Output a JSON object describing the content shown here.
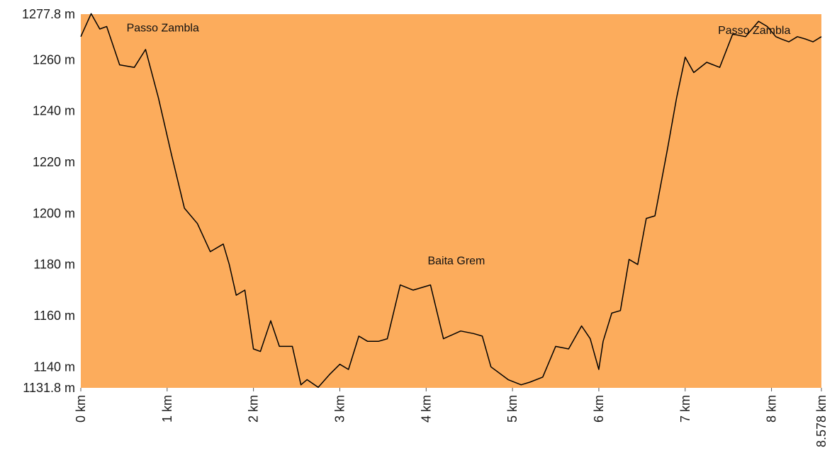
{
  "chart_data": {
    "type": "area",
    "title": "",
    "xlabel": "",
    "ylabel": "",
    "xlim": [
      0,
      8.578
    ],
    "ylim": [
      1131.8,
      1277.8
    ],
    "grid": false,
    "fill_color": "#FCAC5C",
    "line_color": "#000000",
    "y_ticks": [
      {
        "value": 1131.8,
        "label": "1131.8 m"
      },
      {
        "value": 1140,
        "label": "1140 m"
      },
      {
        "value": 1160,
        "label": "1160 m"
      },
      {
        "value": 1180,
        "label": "1180 m"
      },
      {
        "value": 1200,
        "label": "1200 m"
      },
      {
        "value": 1220,
        "label": "1220 m"
      },
      {
        "value": 1240,
        "label": "1240 m"
      },
      {
        "value": 1260,
        "label": "1260 m"
      },
      {
        "value": 1277.8,
        "label": "1277.8 m"
      }
    ],
    "x_ticks": [
      {
        "value": 0,
        "label": "0 km"
      },
      {
        "value": 1,
        "label": "1 km"
      },
      {
        "value": 2,
        "label": "2 km"
      },
      {
        "value": 3,
        "label": "3 km"
      },
      {
        "value": 4,
        "label": "4 km"
      },
      {
        "value": 5,
        "label": "5 km"
      },
      {
        "value": 6,
        "label": "6 km"
      },
      {
        "value": 7,
        "label": "7 km"
      },
      {
        "value": 8,
        "label": "8 km"
      },
      {
        "value": 8.578,
        "label": "8.578 km"
      }
    ],
    "annotations": [
      {
        "text": "Passo Zambla",
        "x": 0.95,
        "y": 1271
      },
      {
        "text": "Baita Grem",
        "x": 4.35,
        "y": 1180
      },
      {
        "text": "Passo Zambla",
        "x": 7.8,
        "y": 1270
      }
    ],
    "x": [
      0,
      0.12,
      0.22,
      0.3,
      0.45,
      0.62,
      0.75,
      0.9,
      1.05,
      1.2,
      1.35,
      1.5,
      1.65,
      1.72,
      1.8,
      1.9,
      2.0,
      2.08,
      2.2,
      2.3,
      2.45,
      2.55,
      2.62,
      2.75,
      2.88,
      3.0,
      3.1,
      3.22,
      3.32,
      3.45,
      3.55,
      3.7,
      3.85,
      4.05,
      4.2,
      4.4,
      4.55,
      4.65,
      4.75,
      4.95,
      5.1,
      5.2,
      5.35,
      5.5,
      5.65,
      5.8,
      5.9,
      6.0,
      6.05,
      6.15,
      6.25,
      6.35,
      6.45,
      6.55,
      6.65,
      6.8,
      6.9,
      7.0,
      7.1,
      7.25,
      7.4,
      7.55,
      7.7,
      7.85,
      7.95,
      8.05,
      8.12,
      8.2,
      8.3,
      8.4,
      8.48,
      8.578
    ],
    "y": [
      1269,
      1278,
      1272,
      1273,
      1258,
      1257,
      1264,
      1245,
      1223,
      1202,
      1196,
      1185,
      1188,
      1180,
      1168,
      1170,
      1147,
      1146,
      1158,
      1148,
      1148,
      1133,
      1135,
      1132,
      1137,
      1141,
      1139,
      1152,
      1150,
      1150,
      1151,
      1172,
      1170,
      1172,
      1151,
      1154,
      1153,
      1152,
      1140,
      1135,
      1133,
      1134,
      1136,
      1148,
      1147,
      1156,
      1151,
      1139,
      1150,
      1161,
      1162,
      1182,
      1180,
      1198,
      1199,
      1226,
      1245,
      1261,
      1255,
      1259,
      1257,
      1270,
      1269,
      1275,
      1273,
      1269,
      1268,
      1267,
      1269,
      1268,
      1267,
      1269
    ]
  }
}
